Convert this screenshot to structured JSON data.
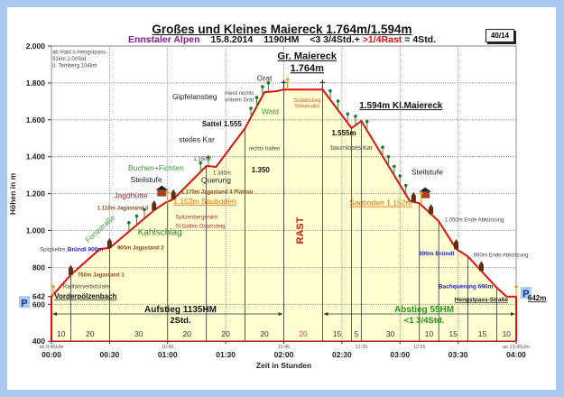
{
  "header": {
    "title": "Großes und Kleines Maiereck 1.764m/1.594m",
    "subtitle_region": "Ennstaler Alpen",
    "subtitle_date": "15.8.2014",
    "subtitle_hm": "1190HM",
    "subtitle_time": "<3 3/4Std.+",
    "subtitle_rest": ">1/4Rast",
    "subtitle_total": "= 4Std.",
    "badge": "40/14",
    "colors": {
      "region": "#8b1a8b",
      "rest": "#e01010"
    }
  },
  "chart_data": {
    "type": "area",
    "title": "Großes und Kleines Maiereck 1.764m/1.594m",
    "xlabel": "Zeit in Stunden",
    "ylabel": "Höhen in m",
    "xlim": [
      0,
      240
    ],
    "ylim": [
      400,
      2000
    ],
    "grid": true,
    "x_ticks": [
      {
        "t": 0,
        "label": "00:00"
      },
      {
        "t": 30,
        "label": "00:30"
      },
      {
        "t": 60,
        "label": "01:00"
      },
      {
        "t": 90,
        "label": "01:30"
      },
      {
        "t": 120,
        "label": "02:00"
      },
      {
        "t": 150,
        "label": "02:30"
      },
      {
        "t": 180,
        "label": "03:00"
      },
      {
        "t": 210,
        "label": "03:30"
      },
      {
        "t": 240,
        "label": "04:00"
      }
    ],
    "y_ticks": [
      {
        "h": 2000,
        "label": "2.000"
      },
      {
        "h": 1800,
        "label": "1.800"
      },
      {
        "h": 1600,
        "label": "1.600"
      },
      {
        "h": 1400,
        "label": "1.400"
      },
      {
        "h": 1200,
        "label": "1.200"
      },
      {
        "h": 1000,
        "label": "1.000"
      },
      {
        "h": 800,
        "label": "800"
      },
      {
        "h": 642,
        "label": "642"
      },
      {
        "h": 600,
        "label": "600"
      },
      {
        "h": 400,
        "label": "400"
      }
    ],
    "clock_times": [
      {
        "t": 0,
        "label": "ab 9:45Uhr"
      },
      {
        "t": 60,
        "label": "10:45"
      },
      {
        "t": 120,
        "label": "11:45"
      },
      {
        "t": 160,
        "label": "12:25"
      },
      {
        "t": 190,
        "label": "12:55"
      },
      {
        "t": 240,
        "label": "an 13:45Uhr"
      }
    ],
    "profile": [
      [
        0,
        642
      ],
      [
        10,
        760
      ],
      [
        25,
        900
      ],
      [
        30,
        905
      ],
      [
        53,
        1110
      ],
      [
        59,
        1152
      ],
      [
        63,
        1170
      ],
      [
        80,
        1350
      ],
      [
        85,
        1345
      ],
      [
        100,
        1555
      ],
      [
        110,
        1750
      ],
      [
        116,
        1755
      ],
      [
        120,
        1764
      ],
      [
        140,
        1764
      ],
      [
        155,
        1555
      ],
      [
        160,
        1594
      ],
      [
        185,
        1160
      ],
      [
        190,
        1148
      ],
      [
        200,
        1050
      ],
      [
        209,
        900
      ],
      [
        215,
        860
      ],
      [
        230,
        690
      ],
      [
        235,
        642
      ],
      [
        240,
        642
      ]
    ],
    "segments": [
      {
        "minutes": 10,
        "label": "10"
      },
      {
        "minutes": 20,
        "label": "20"
      },
      {
        "minutes": 30,
        "label": "30"
      },
      {
        "minutes": 20,
        "label": "20"
      },
      {
        "minutes": 20,
        "label": "20"
      },
      {
        "minutes": 20,
        "label": "20"
      },
      {
        "minutes": 20,
        "label": "20",
        "rest": true
      },
      {
        "minutes": 15,
        "label": "15"
      },
      {
        "minutes": 5,
        "label": "5"
      },
      {
        "minutes": 30,
        "label": "30"
      },
      {
        "minutes": 10,
        "label": "10"
      },
      {
        "minutes": 15,
        "label": "15"
      },
      {
        "minutes": 15,
        "label": "15"
      },
      {
        "minutes": 10,
        "label": "10"
      }
    ],
    "phases": [
      {
        "from": 0,
        "to": 120,
        "label": "Aufstieg 1135HM",
        "sub": "2Std.",
        "color": "#111111"
      },
      {
        "from": 140,
        "to": 240,
        "label": "Abstieg 55HM",
        "sub": "<1 3/4Std.",
        "color": "#1a9a1a"
      }
    ],
    "trees": [
      40,
      44,
      48,
      77,
      81,
      103,
      106,
      109,
      112,
      144,
      148,
      153,
      157,
      163,
      171,
      174,
      177,
      180,
      183
    ],
    "huts": [
      10,
      30,
      53,
      63,
      187,
      196,
      209,
      222
    ],
    "cabins": [
      [
        57,
        1195
      ],
      [
        193,
        1185
      ]
    ],
    "signposts": [
      0,
      59,
      121,
      190,
      240
    ],
    "crosses": [
      120,
      140
    ],
    "parking": [
      {
        "t": -14,
        "h": 610,
        "label": "P"
      },
      {
        "t": 245,
        "h": 660,
        "label": "P"
      }
    ],
    "annotations": [
      {
        "text": "ab Haid ü.Hengstpass",
        "t": 0.5,
        "h": 1958,
        "anchor": "start",
        "kind": "note"
      },
      {
        "text": "91km 1:00Std.",
        "t": 0.5,
        "h": 1922,
        "anchor": "start",
        "kind": "note"
      },
      {
        "text": "ü. Temberg 104km",
        "t": 0.5,
        "h": 1885,
        "anchor": "start",
        "kind": "note"
      },
      {
        "text": "Gipfelanstieg",
        "t": 74,
        "h": 1712,
        "anchor": "middle",
        "kind": "label"
      },
      {
        "text": "meist rechts",
        "t": 97,
        "h": 1735,
        "anchor": "middle",
        "kind": "note"
      },
      {
        "text": "unterm Grat",
        "t": 97,
        "h": 1700,
        "anchor": "middle",
        "kind": "note"
      },
      {
        "text": "Grat",
        "t": 110,
        "h": 1812,
        "anchor": "middle",
        "kind": "label"
      },
      {
        "text": "Gr. Maiereck",
        "t": 132,
        "h": 1928,
        "anchor": "middle",
        "kind": "peak"
      },
      {
        "text": "1.764m",
        "t": 132,
        "h": 1862,
        "anchor": "middle",
        "kind": "peak"
      },
      {
        "text": "Südabstieg",
        "t": 132,
        "h": 1698,
        "anchor": "middle",
        "kind": "orange-note"
      },
      {
        "text": "Seisenalm",
        "t": 132,
        "h": 1665,
        "anchor": "middle",
        "kind": "orange-note"
      },
      {
        "text": "Wald",
        "t": 113,
        "h": 1632,
        "anchor": "middle",
        "kind": "green"
      },
      {
        "text": "Sattel 1.555",
        "t": 88,
        "h": 1565,
        "anchor": "middle",
        "kind": "bold"
      },
      {
        "text": "steiles Kar",
        "t": 75,
        "h": 1478,
        "anchor": "middle",
        "kind": "label"
      },
      {
        "text": "rechts halten",
        "t": 110,
        "h": 1436,
        "anchor": "middle",
        "kind": "note"
      },
      {
        "text": "1.350m",
        "t": 78,
        "h": 1380,
        "anchor": "middle",
        "kind": "note"
      },
      {
        "text": "1.345m",
        "t": 88,
        "h": 1302,
        "anchor": "middle",
        "kind": "note"
      },
      {
        "text": "1.350",
        "t": 108,
        "h": 1316,
        "anchor": "middle",
        "kind": "bold"
      },
      {
        "text": "Buchen+Fichten",
        "t": 54,
        "h": 1326,
        "anchor": "middle",
        "kind": "green"
      },
      {
        "text": "Steilstufe",
        "t": 49,
        "h": 1262,
        "anchor": "middle",
        "kind": "label"
      },
      {
        "text": "Querung",
        "t": 85,
        "h": 1258,
        "anchor": "middle",
        "kind": "label"
      },
      {
        "text": "Jagdhütte",
        "t": 41,
        "h": 1175,
        "anchor": "middle",
        "kind": "hut"
      },
      {
        "text": "1.170m Jagastand 4 Plateau",
        "t": 67,
        "h": 1200,
        "anchor": "start",
        "kind": "brown"
      },
      {
        "text": "1.152m Sauboden",
        "t": 63,
        "h": 1145,
        "anchor": "start",
        "kind": "orange-u"
      },
      {
        "text": "1.110m Jagastand 3",
        "t": 50,
        "h": 1112,
        "anchor": "end",
        "kind": "brown"
      },
      {
        "text": "Spitzenbergeralm",
        "t": 64,
        "h": 1063,
        "anchor": "start",
        "kind": "red-note"
      },
      {
        "text": "St.Gallen Ostansteig",
        "t": 64,
        "h": 1015,
        "anchor": "start",
        "kind": "red-note"
      },
      {
        "text": "Forststraße",
        "t": 26,
        "h": 1000,
        "anchor": "middle",
        "kind": "green-rot"
      },
      {
        "text": "Kahlschlag",
        "t": 56,
        "h": 975,
        "anchor": "middle",
        "kind": "green-big"
      },
      {
        "text": "Spitzkehre,",
        "t": 8,
        "h": 887,
        "anchor": "end",
        "kind": "note"
      },
      {
        "text": "Bründl 900m",
        "t": 8.3,
        "h": 887,
        "anchor": "start",
        "kind": "blue"
      },
      {
        "text": "905m Jagastand 2",
        "t": 34,
        "h": 897,
        "anchor": "start",
        "kind": "brown"
      },
      {
        "text": "760m Jagastand 1",
        "t": 13.5,
        "h": 750,
        "anchor": "start",
        "kind": "brown"
      },
      {
        "text": "Radfahrverbotstafel",
        "t": 6,
        "h": 688,
        "anchor": "start",
        "kind": "note"
      },
      {
        "text": "Vorderpölzenbach",
        "t": 1.5,
        "h": 632,
        "anchor": "start",
        "kind": "bold-u"
      },
      {
        "text": "RAST",
        "t": 130,
        "h": 1000,
        "anchor": "middle",
        "kind": "rast"
      },
      {
        "text": "1.594m Kl.Maiereck",
        "t": 159,
        "h": 1662,
        "anchor": "start",
        "kind": "peak-sm"
      },
      {
        "text": "1.555m",
        "t": 151,
        "h": 1516,
        "anchor": "middle",
        "kind": "bold"
      },
      {
        "text": "baumloses Kar",
        "t": 155,
        "h": 1438,
        "anchor": "middle",
        "kind": "note2"
      },
      {
        "text": "Steilstufe",
        "t": 194,
        "h": 1302,
        "anchor": "middle",
        "kind": "label"
      },
      {
        "text": "Sauboden 1.152m",
        "t": 170,
        "h": 1136,
        "anchor": "middle",
        "kind": "orange-u"
      },
      {
        "text": "1.050m Ende Abkürzung",
        "t": 203,
        "h": 1048,
        "anchor": "start",
        "kind": "note"
      },
      {
        "text": "900m Bründl",
        "t": 208,
        "h": 866,
        "anchor": "end",
        "kind": "blue"
      },
      {
        "text": "860m Ende Abkürzung",
        "t": 218,
        "h": 857,
        "anchor": "start",
        "kind": "note"
      },
      {
        "text": "Bachquerung 690m",
        "t": 228,
        "h": 686,
        "anchor": "end",
        "kind": "blue"
      },
      {
        "text": "642m",
        "t": 246,
        "h": 620,
        "anchor": "start",
        "kind": "bold-u"
      },
      {
        "text": "Hengstpass-Straße",
        "t": 222,
        "h": 616,
        "anchor": "middle",
        "kind": "bold-u-sm"
      }
    ]
  }
}
